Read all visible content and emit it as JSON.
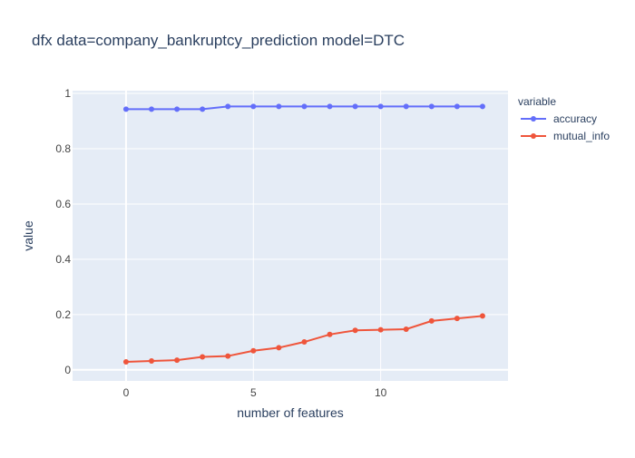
{
  "chart_data": {
    "type": "line",
    "title": "dfx data=company_bankruptcy_prediction model=DTC",
    "xlabel": "number of features",
    "ylabel": "value",
    "xlim": [
      -2.1,
      15.0
    ],
    "ylim": [
      -0.04,
      1.01
    ],
    "xticks": [
      {
        "value": 0,
        "label": "0"
      },
      {
        "value": 5,
        "label": "5"
      },
      {
        "value": 10,
        "label": "10"
      }
    ],
    "yticks": [
      {
        "value": 0,
        "label": "0"
      },
      {
        "value": 0.2,
        "label": "0.2"
      },
      {
        "value": 0.4,
        "label": "0.4"
      },
      {
        "value": 0.6,
        "label": "0.6"
      },
      {
        "value": 0.8,
        "label": "0.8"
      },
      {
        "value": 1,
        "label": "1"
      }
    ],
    "grid": true,
    "legend": {
      "title": "variable",
      "position": "top-right"
    },
    "x": [
      0,
      1,
      2,
      3,
      4,
      5,
      6,
      7,
      8,
      9,
      10,
      11,
      12,
      13,
      14
    ],
    "series": [
      {
        "name": "accuracy",
        "color": "#636efa",
        "values": [
          0.943,
          0.943,
          0.943,
          0.943,
          0.953,
          0.953,
          0.953,
          0.953,
          0.953,
          0.953,
          0.953,
          0.953,
          0.953,
          0.953,
          0.953
        ]
      },
      {
        "name": "mutual_info",
        "color": "#EF553B",
        "values": [
          0.029,
          0.032,
          0.035,
          0.047,
          0.05,
          0.069,
          0.08,
          0.101,
          0.128,
          0.143,
          0.145,
          0.147,
          0.177,
          0.186,
          0.195
        ]
      }
    ],
    "colors": {
      "plot_background": "#e5ecf6",
      "grid": "#ffffff",
      "text": "#2a3f5f",
      "tick_text": "#444444"
    }
  }
}
